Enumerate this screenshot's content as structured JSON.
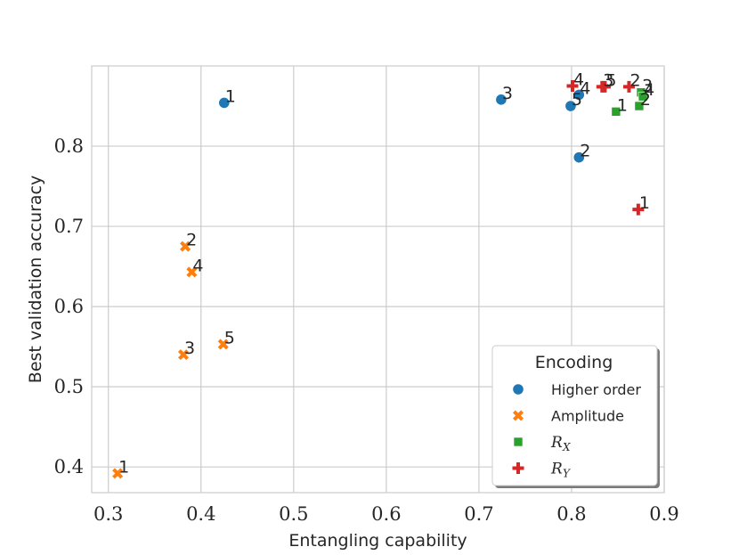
{
  "chart_data": {
    "type": "scatter",
    "title": "",
    "xlabel": "Entangling capability",
    "ylabel": "Best validation accuracy",
    "xlim": [
      0.282,
      0.9
    ],
    "ylim": [
      0.368,
      0.9
    ],
    "xticks": [
      0.3,
      0.4,
      0.5,
      0.6,
      0.7,
      0.8,
      0.9
    ],
    "xtick_labels": [
      "0.3",
      "0.4",
      "0.5",
      "0.6",
      "0.7",
      "0.8",
      "0.9"
    ],
    "yticks": [
      0.4,
      0.5,
      0.6,
      0.7,
      0.8
    ],
    "ytick_labels": [
      "0.4",
      "0.5",
      "0.6",
      "0.7",
      "0.8"
    ],
    "grid": true,
    "legend": {
      "title": "Encoding",
      "placement": "bottom-right"
    },
    "series": [
      {
        "name": "Higher order",
        "marker": "circle",
        "color": "#1f77b4",
        "points": [
          {
            "label": "1",
            "x": 0.425,
            "y": 0.854
          },
          {
            "label": "2",
            "x": 0.808,
            "y": 0.786
          },
          {
            "label": "3",
            "x": 0.724,
            "y": 0.858
          },
          {
            "label": "4",
            "x": 0.808,
            "y": 0.864
          },
          {
            "label": "5",
            "x": 0.799,
            "y": 0.85
          }
        ]
      },
      {
        "name": "Amplitude",
        "marker": "x",
        "color": "#ff7f0e",
        "points": [
          {
            "label": "1",
            "x": 0.31,
            "y": 0.392
          },
          {
            "label": "2",
            "x": 0.383,
            "y": 0.675
          },
          {
            "label": "3",
            "x": 0.381,
            "y": 0.54
          },
          {
            "label": "4",
            "x": 0.39,
            "y": 0.643
          },
          {
            "label": "5",
            "x": 0.424,
            "y": 0.553
          }
        ]
      },
      {
        "name": "R_X",
        "legend_base": "R",
        "legend_sub": "X",
        "marker": "square",
        "color": "#2ca02c",
        "points": [
          {
            "label": "1",
            "x": 0.848,
            "y": 0.843
          },
          {
            "label": "2",
            "x": 0.873,
            "y": 0.85
          },
          {
            "label": "3",
            "x": 0.875,
            "y": 0.867
          },
          {
            "label": "4",
            "x": 0.877,
            "y": 0.862
          }
        ]
      },
      {
        "name": "R_Y",
        "legend_base": "R",
        "legend_sub": "Y",
        "marker": "plus",
        "color": "#d62728",
        "points": [
          {
            "label": "1",
            "x": 0.872,
            "y": 0.721
          },
          {
            "label": "2",
            "x": 0.862,
            "y": 0.874
          },
          {
            "label": "3",
            "x": 0.833,
            "y": 0.874
          },
          {
            "label": "4",
            "x": 0.801,
            "y": 0.875
          },
          {
            "label": "5",
            "x": 0.836,
            "y": 0.874
          }
        ]
      }
    ]
  }
}
